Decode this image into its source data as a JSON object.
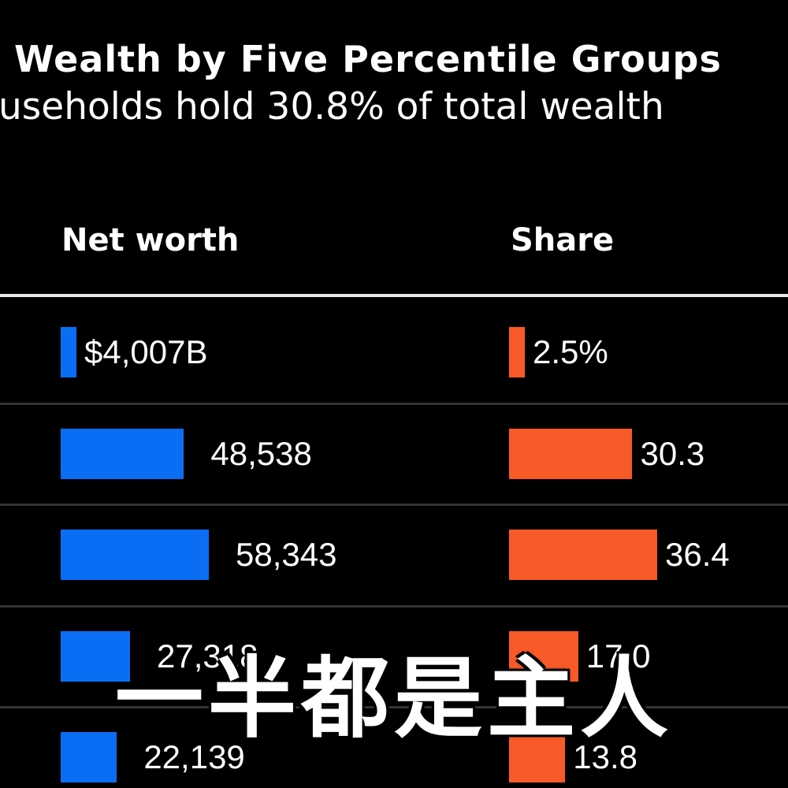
{
  "chart_data": {
    "type": "table",
    "title": "Wealth by Five Percentile Groups",
    "subtitle": "useholds hold 30.8% of total wealth",
    "columns": [
      "Net worth",
      "Share"
    ],
    "rows": [
      {
        "net_worth": 4007,
        "net_worth_label": "$4,007B",
        "share": 2.5,
        "share_label": "2.5%"
      },
      {
        "net_worth": 48538,
        "net_worth_label": "48,538",
        "share": 30.3,
        "share_label": "30.3"
      },
      {
        "net_worth": 58343,
        "net_worth_label": "58,343",
        "share": 36.4,
        "share_label": "36.4"
      },
      {
        "net_worth": 27318,
        "net_worth_label": "27,318",
        "share": 17.0,
        "share_label": "17.0"
      },
      {
        "net_worth": 22139,
        "net_worth_label": "22,139",
        "share": 13.8,
        "share_label": "13.8"
      }
    ],
    "colors": {
      "net_worth_bar": "#0a6ef5",
      "share_bar": "#f85a27"
    }
  },
  "overlay_caption": "一半都是主人"
}
